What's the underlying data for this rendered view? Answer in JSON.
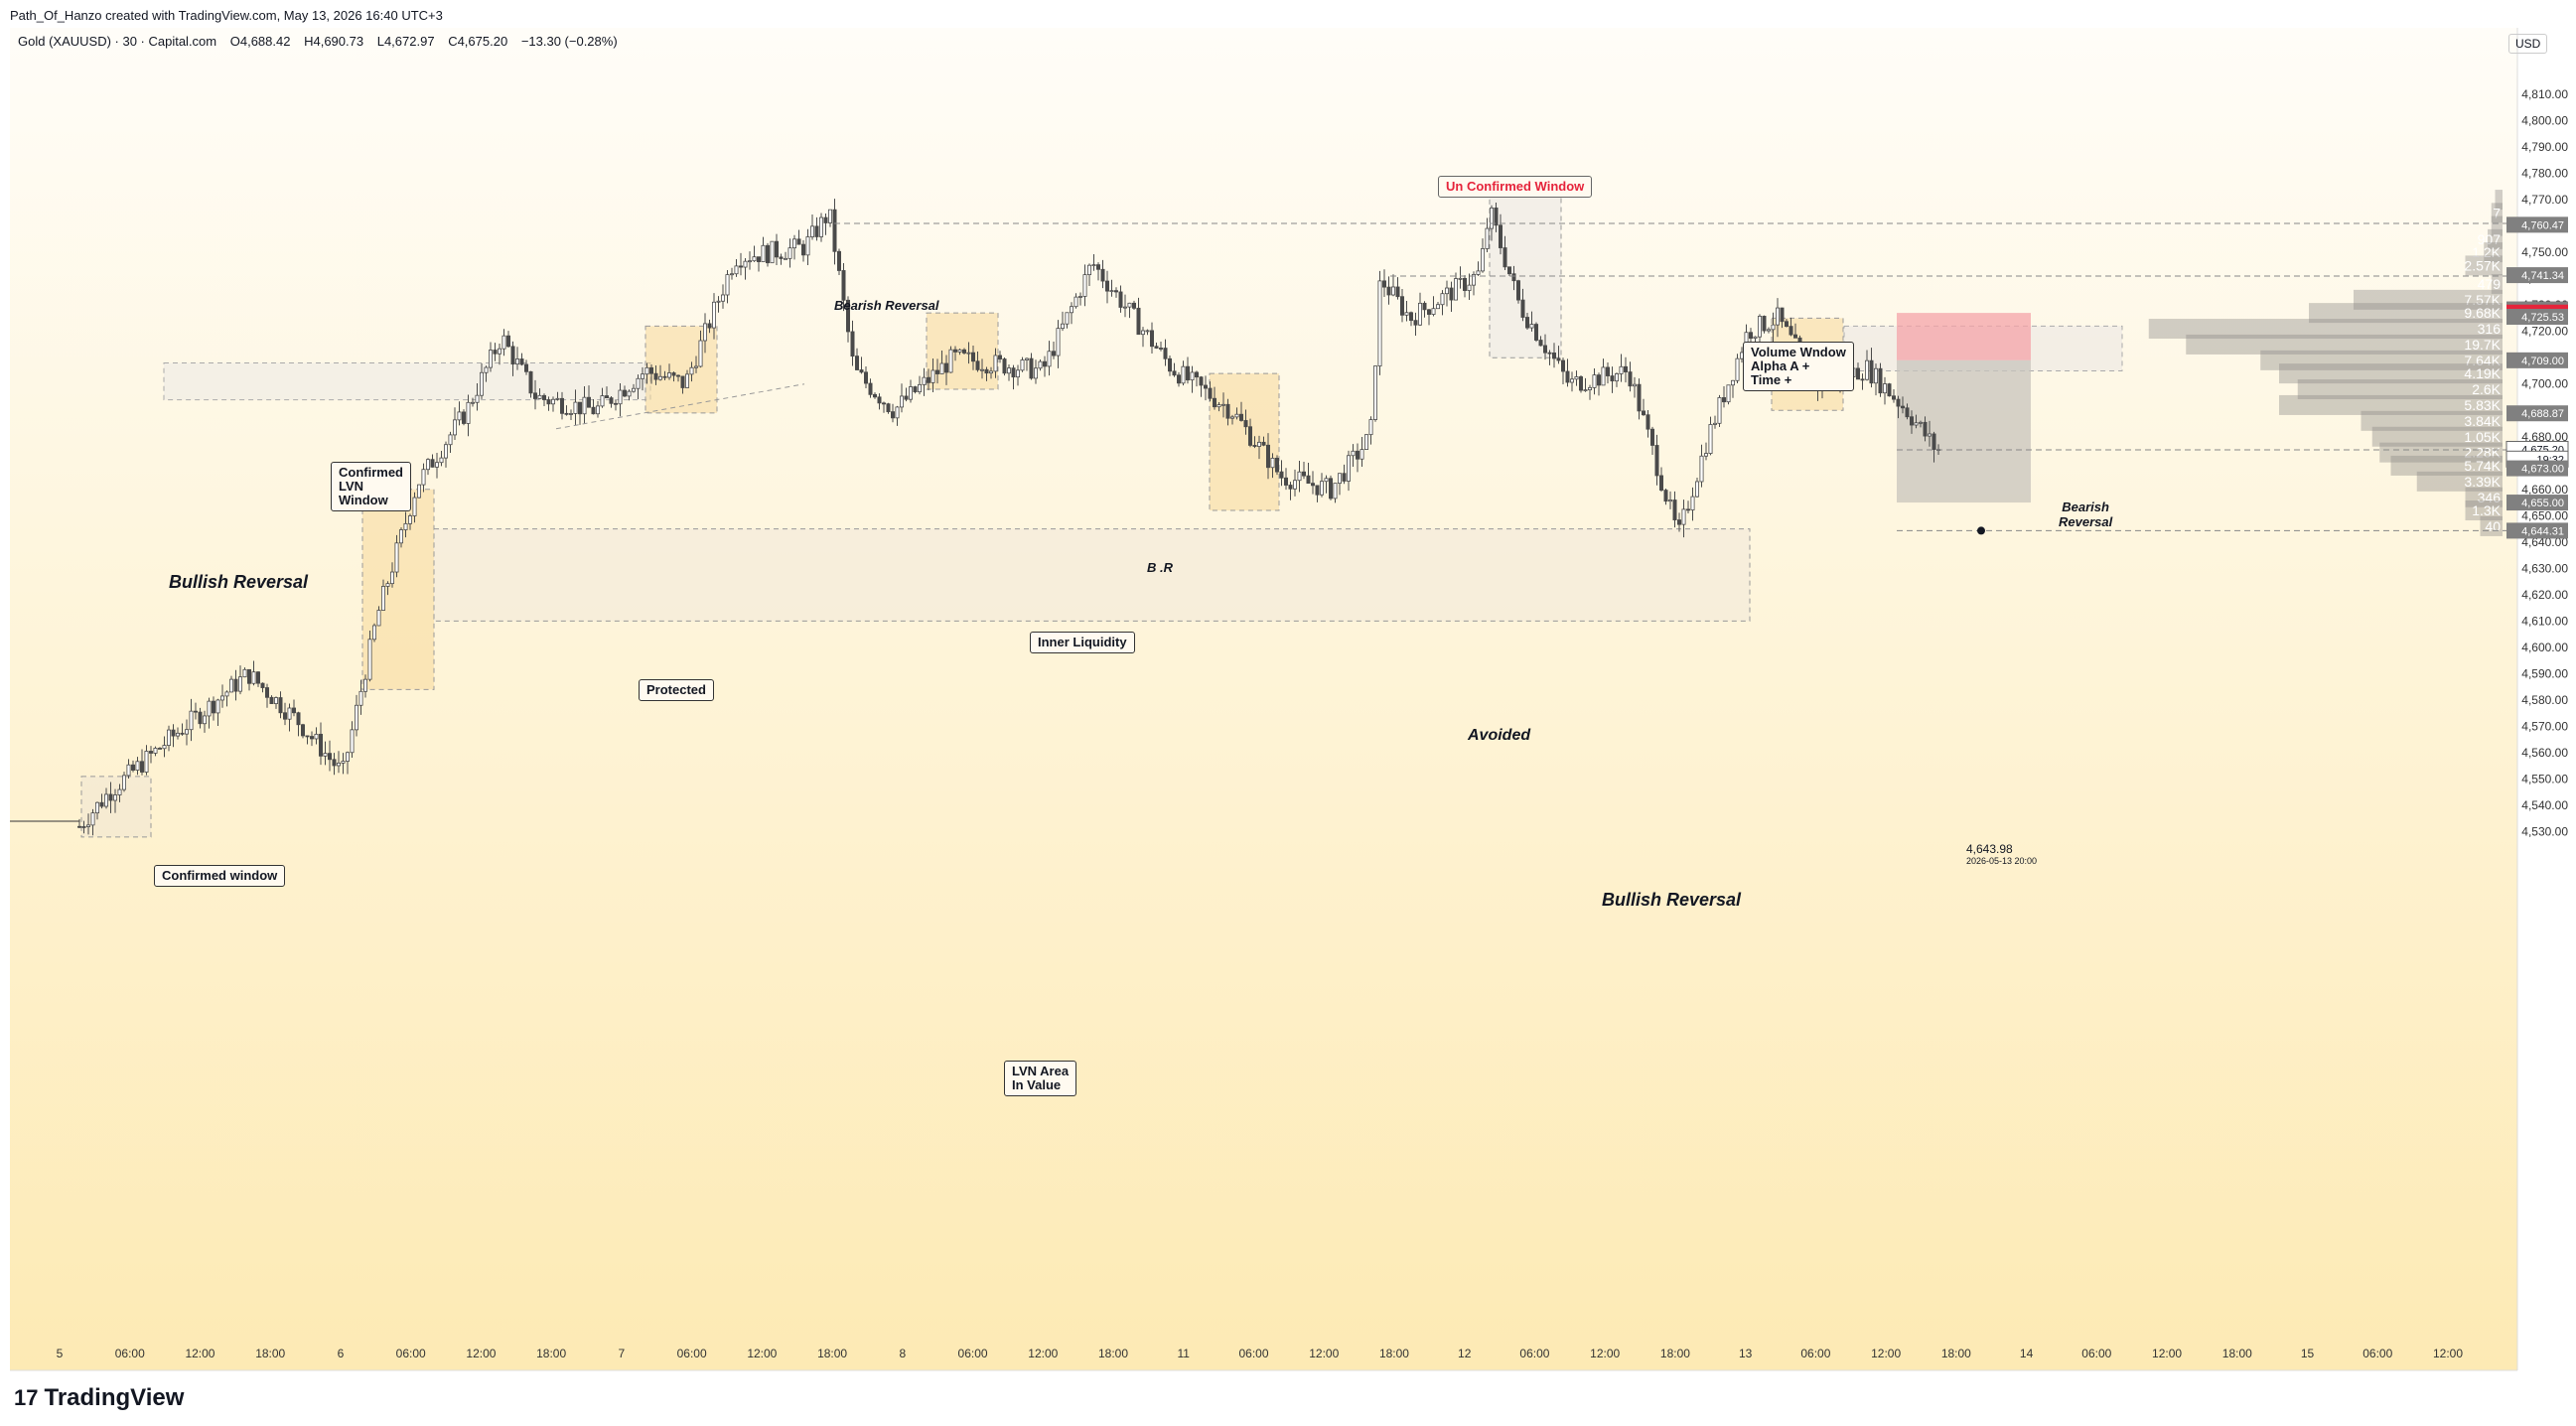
{
  "header": {
    "created": "Path_Of_Hanzo created with TradingView.com, May 13, 2026 16:40 UTC+3",
    "symbol": "Gold (XAUUSD) · 30 · Capital.com",
    "open": "O4,688.42",
    "high": "H4,690.73",
    "low": "L4,672.97",
    "close": "C4,675.20",
    "change": "−13.30 (−0.28%)",
    "currency": "USD"
  },
  "brand": "TradingView",
  "price_axis": {
    "ticks": [
      "4,810.00",
      "4,800.00",
      "4,790.00",
      "4,780.00",
      "4,770.00",
      "4,760.00",
      "4,750.00",
      "4,740.00",
      "4,730.00",
      "4,720.00",
      "4,710.00",
      "4,700.00",
      "4,690.00",
      "4,680.00",
      "4,670.00",
      "4,660.00",
      "4,650.00",
      "4,640.00",
      "4,630.00",
      "4,620.00",
      "4,610.00",
      "4,600.00",
      "4,590.00",
      "4,580.00",
      "4,570.00",
      "4,560.00",
      "4,550.00",
      "4,540.00",
      "4,530.00"
    ],
    "tick_values": [
      4810,
      4800,
      4790,
      4780,
      4770,
      4760,
      4750,
      4740,
      4730,
      4720,
      4710,
      4700,
      4690,
      4680,
      4670,
      4660,
      4650,
      4640,
      4630,
      4620,
      4610,
      4600,
      4590,
      4580,
      4570,
      4560,
      4550,
      4540,
      4530
    ],
    "tags": [
      {
        "text": "4,760.47",
        "value": 4760.47,
        "color": "#808080"
      },
      {
        "text": "4,741.34",
        "value": 4741.34,
        "color": "#808080"
      },
      {
        "text": "4,728.35",
        "value": 4728.35,
        "color": "#808080"
      },
      {
        "text": "4,727.13",
        "value": 4727.13,
        "color": "#e5243b"
      },
      {
        "text": "4,725.53",
        "value": 4725.53,
        "color": "#808080"
      },
      {
        "text": "4,709.00",
        "value": 4709.0,
        "color": "#808080"
      },
      {
        "text": "4,688.87",
        "value": 4688.87,
        "color": "#808080"
      },
      {
        "text": "4,675.20",
        "value": 4675.2,
        "color": "#ffffff"
      },
      {
        "text": "19:32",
        "value": 4671.5,
        "color": "#ffffff"
      },
      {
        "text": "4,673.00",
        "value": 4668.0,
        "color": "#808080"
      },
      {
        "text": "4,655.00",
        "value": 4655.0,
        "color": "#808080"
      },
      {
        "text": "4,644.31",
        "value": 4644.31,
        "color": "#808080"
      }
    ]
  },
  "time_axis": {
    "labels": [
      "5",
      "06:00",
      "12:00",
      "18:00",
      "6",
      "06:00",
      "12:00",
      "18:00",
      "7",
      "06:00",
      "12:00",
      "18:00",
      "8",
      "06:00",
      "12:00",
      "18:00",
      "11",
      "06:00",
      "12:00",
      "18:00",
      "12",
      "06:00",
      "12:00",
      "18:00",
      "13",
      "06:00",
      "12:00",
      "18:00",
      "14",
      "06:00",
      "12:00",
      "18:00",
      "15",
      "06:00",
      "12:00"
    ]
  },
  "volume_profile": [
    {
      "label": "",
      "value": 4770,
      "fraction": 0.02
    },
    {
      "label": "7",
      "value": 4765,
      "fraction": 0.03
    },
    {
      "label": "",
      "value": 4760,
      "fraction": 0.03
    },
    {
      "label": "907",
      "value": 4755,
      "fraction": 0.04
    },
    {
      "label": "1.2K",
      "value": 4750,
      "fraction": 0.05
    },
    {
      "label": "2.57K",
      "value": 4745,
      "fraction": 0.1
    },
    {
      "label": "479",
      "value": 4738,
      "fraction": 0.03
    },
    {
      "label": "7.57K",
      "value": 4732,
      "fraction": 0.4
    },
    {
      "label": "9.68K",
      "value": 4727,
      "fraction": 0.52
    },
    {
      "label": "316",
      "value": 4721,
      "fraction": 0.95
    },
    {
      "label": "19.7K",
      "value": 4715,
      "fraction": 0.85
    },
    {
      "label": "7.64K",
      "value": 4709,
      "fraction": 0.65
    },
    {
      "label": "4.19K",
      "value": 4704,
      "fraction": 0.6
    },
    {
      "label": "2.6K",
      "value": 4698,
      "fraction": 0.55
    },
    {
      "label": "5.83K",
      "value": 4692,
      "fraction": 0.6
    },
    {
      "label": "3.84K",
      "value": 4686,
      "fraction": 0.38
    },
    {
      "label": "1.05K",
      "value": 4680,
      "fraction": 0.35
    },
    {
      "label": "2.28K",
      "value": 4674,
      "fraction": 0.33
    },
    {
      "label": "5.74K",
      "value": 4669,
      "fraction": 0.3
    },
    {
      "label": "3.39K",
      "value": 4663,
      "fraction": 0.23
    },
    {
      "label": "346",
      "value": 4657,
      "fraction": 0.1
    },
    {
      "label": "1.3K",
      "value": 4652,
      "fraction": 0.1
    },
    {
      "label": "40",
      "value": 4646,
      "fraction": 0.06
    }
  ],
  "annotations": {
    "unconfirmed_window": "Un Confirmed Window",
    "bearish_reversal_top": "Bearish Reversal",
    "confirmed_lvn_window": "Confirmed\nLVN\nWindow",
    "bullish_reversal_left": "Bullish Reversal",
    "protected": "Protected",
    "br": "B .R",
    "inner_liquidity": "Inner Liquidity",
    "avoided": "Avoided",
    "confirmed_window": "Confirmed window",
    "volume_window": "Volume Wndow\nAlpha A +\nTime +",
    "bearish_reversal_right": "Bearish\nReversal",
    "bullish_reversal_right": "Bullish Reversal",
    "lvn_area": "LVN Area\nIn Value",
    "price_marker": "4,643.98",
    "price_marker_date": "2026-05-13 20:00"
  },
  "colors": {
    "bg_top": "#fffdf8",
    "bg_bottom": "#fdeab4",
    "candle": "#4a4a4a",
    "accent_red": "#e5243b",
    "window_fill": "#f6d99a"
  }
}
